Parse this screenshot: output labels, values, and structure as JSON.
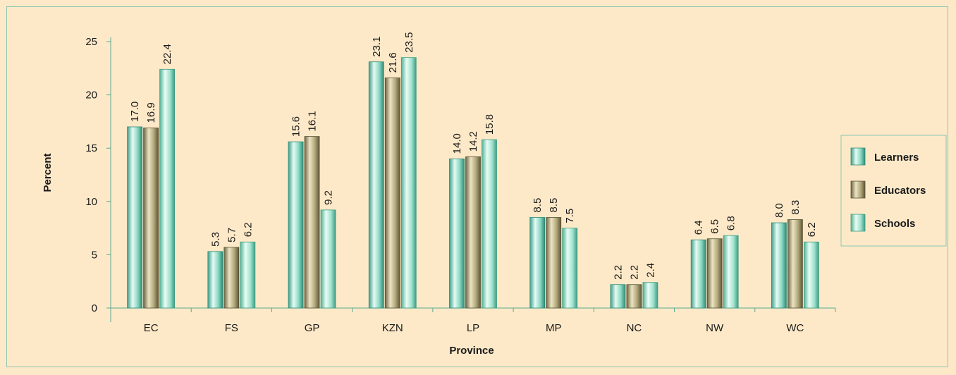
{
  "chart_data": {
    "type": "bar",
    "xlabel": "Province",
    "ylabel": "Percent",
    "ylim": [
      0,
      25
    ],
    "yticks": [
      0,
      5,
      10,
      15,
      20,
      25
    ],
    "categories": [
      "EC",
      "FS",
      "GP",
      "KZN",
      "LP",
      "MP",
      "NC",
      "NW",
      "WC"
    ],
    "series": [
      {
        "name": "Learners",
        "values": [
          17.0,
          5.3,
          15.6,
          23.1,
          14.0,
          8.5,
          2.2,
          6.4,
          8.0
        ],
        "labels": [
          "17.0",
          "5.3",
          "15.6",
          "23.1",
          "14.0",
          "8.5",
          "2.2",
          "6.4",
          "8.0"
        ]
      },
      {
        "name": "Educators",
        "values": [
          16.9,
          5.7,
          16.1,
          21.6,
          14.2,
          8.5,
          2.2,
          6.5,
          8.3
        ],
        "labels": [
          "16.9",
          "5.7",
          "16.1",
          "21.6",
          "14.2",
          "8.5",
          "2.2",
          "6.5",
          "8.3"
        ]
      },
      {
        "name": "Schools",
        "values": [
          22.4,
          6.2,
          9.2,
          23.5,
          15.8,
          7.5,
          2.4,
          6.8,
          6.2
        ],
        "labels": [
          "22.4",
          "6.2",
          "9.2",
          "23.5",
          "15.8",
          "7.5",
          "2.4",
          "6.8",
          "6.2"
        ]
      }
    ],
    "legend_position": "right",
    "grid": false
  }
}
